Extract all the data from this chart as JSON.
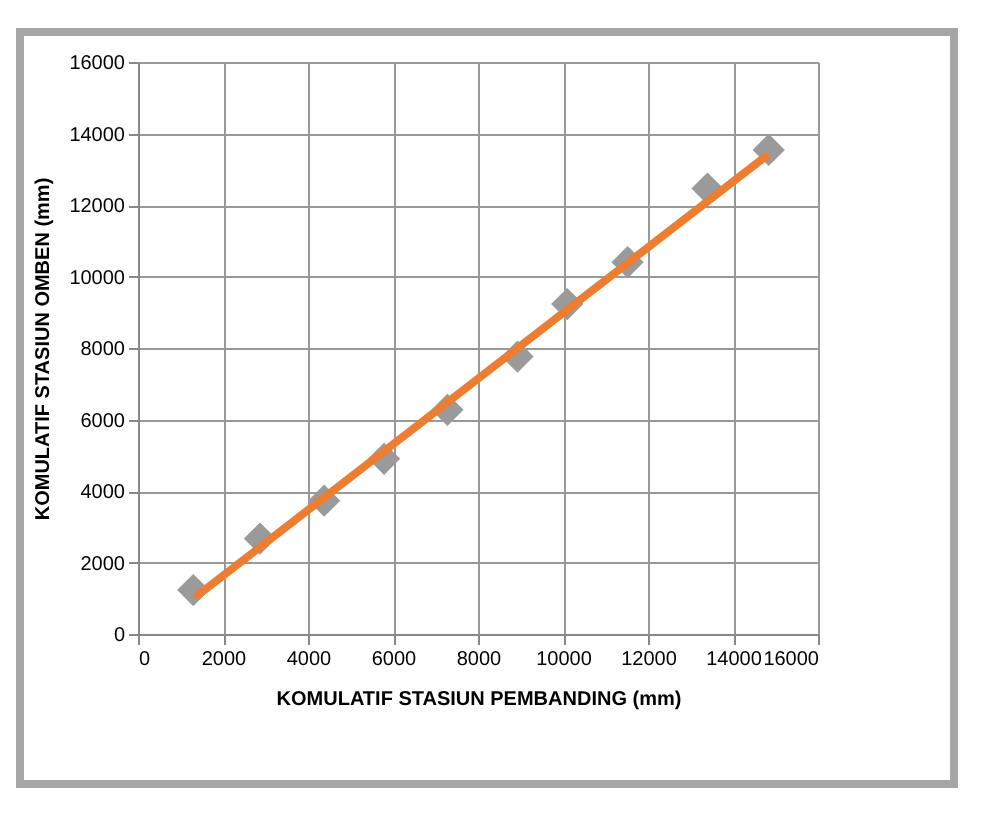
{
  "chart_data": {
    "type": "scatter",
    "xlabel": "KOMULATIF STASIUN PEMBANDING (mm)",
    "ylabel": "KOMULATIF STASIUN OMBEN (mm)",
    "x": [
      1300,
      2870,
      4380,
      5790,
      7280,
      8930,
      10100,
      11520,
      13400,
      14840
    ],
    "series": [
      {
        "type": "scatter",
        "color": "#9a9a9a",
        "marker": "diamond",
        "values": [
          1230,
          2670,
          3730,
          4900,
          6270,
          7760,
          9230,
          10400,
          12460,
          13540
        ]
      },
      {
        "type": "line",
        "color": "#ed7d31",
        "x": [
          1400,
          14760
        ],
        "values": [
          1080,
          13350
        ],
        "marker": "none",
        "line_style": "solid"
      }
    ],
    "xlim": [
      0,
      16000
    ],
    "xticks": [
      0,
      2000,
      4000,
      6000,
      8000,
      10000,
      12000,
      14000,
      16000
    ],
    "ylim": [
      0,
      16000
    ],
    "yticks": [
      0,
      2000,
      4000,
      6000,
      8000,
      10000,
      12000,
      14000,
      16000
    ],
    "grid": true,
    "legend": false
  }
}
